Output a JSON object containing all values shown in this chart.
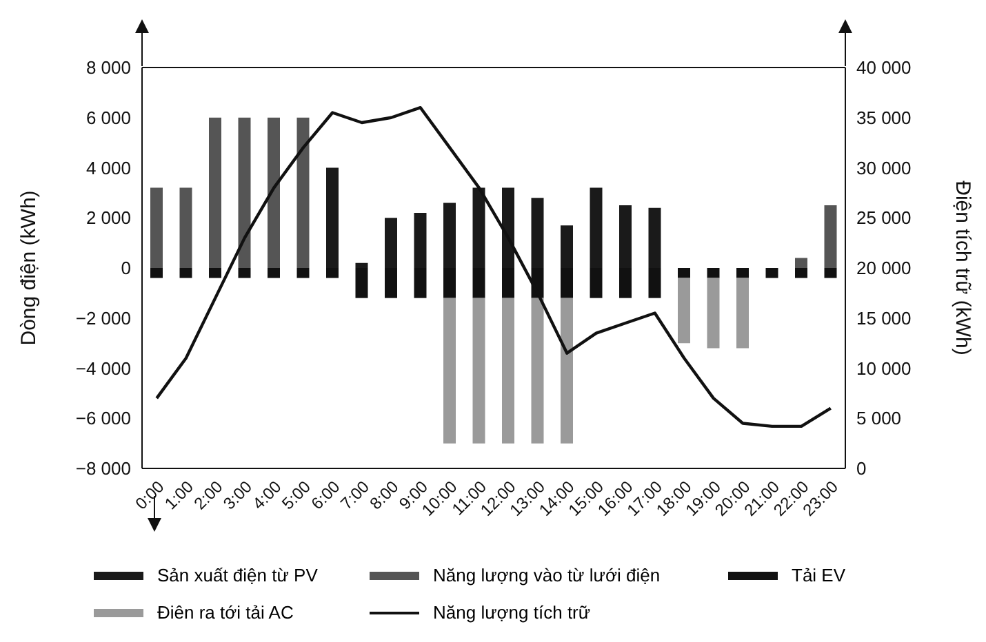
{
  "chart_data": {
    "type": "bar",
    "stacked": true,
    "xlabel": null,
    "ylabel": "Dòng điện (kWh)",
    "y2label": "Điện tích trữ  (kWh)",
    "categories": [
      "0:00",
      "1:00",
      "2:00",
      "3:00",
      "4:00",
      "5:00",
      "6:00",
      "7:00",
      "8:00",
      "9:00",
      "10:00",
      "11:00",
      "12:00",
      "13:00",
      "14:00",
      "15:00",
      "16:00",
      "17:00",
      "18:00",
      "19:00",
      "20:00",
      "21:00",
      "22:00",
      "23:00"
    ],
    "series": [
      {
        "name": "Sản xuất điện từ PV",
        "color": "#1a1a1a",
        "values": [
          null,
          null,
          null,
          null,
          null,
          null,
          4000,
          200,
          2000,
          2200,
          2600,
          3200,
          3200,
          2800,
          1700,
          3200,
          2500,
          2400,
          null,
          null,
          null,
          null,
          null,
          null
        ]
      },
      {
        "name": "Năng lượng vào từ lưới điện",
        "color": "#555555",
        "values": [
          3200,
          3200,
          6000,
          6000,
          6000,
          6000,
          null,
          null,
          null,
          null,
          null,
          null,
          null,
          null,
          null,
          null,
          null,
          null,
          null,
          null,
          null,
          null,
          400,
          2500
        ]
      },
      {
        "name": "Tải EV",
        "color": "#111111",
        "values": [
          -400,
          -400,
          -400,
          -400,
          -400,
          -400,
          -400,
          -1200,
          -1200,
          -1200,
          -1200,
          -1200,
          -1200,
          -1200,
          -1200,
          -1200,
          -1200,
          -1200,
          -400,
          -400,
          -400,
          -400,
          -400,
          -400
        ]
      },
      {
        "name": "Điên ra tới tải AC",
        "color": "#9a9a9a",
        "values": [
          null,
          null,
          null,
          null,
          null,
          null,
          null,
          null,
          null,
          null,
          -5800,
          -5800,
          -5800,
          -5800,
          -5800,
          null,
          null,
          null,
          -2600,
          -2800,
          -2800,
          null,
          null,
          null
        ]
      },
      {
        "name": "Năng lượng tích trữ",
        "type": "line",
        "axis": "y2",
        "color": "#111111",
        "values": [
          7000,
          11000,
          17000,
          23000,
          28000,
          32000,
          35500,
          34500,
          35000,
          36000,
          32000,
          28000,
          23000,
          17500,
          11500,
          13500,
          14500,
          15500,
          11000,
          7000,
          4500,
          4200,
          4200,
          6000
        ]
      }
    ],
    "ylim": [
      -8000,
      8000
    ],
    "yticks": [
      {
        "value": -8000,
        "label": "−8 000"
      },
      {
        "value": -6000,
        "label": "−6 000"
      },
      {
        "value": -4000,
        "label": "−4 000"
      },
      {
        "value": -2000,
        "label": "−2 000"
      },
      0,
      {
        "value": 2000,
        "label": "2 000"
      },
      {
        "value": 4000,
        "label": "4 000"
      },
      {
        "value": 6000,
        "label": "6 000"
      },
      {
        "value": 8000,
        "label": "8 000"
      }
    ],
    "y2lim": [
      0,
      40000
    ],
    "y2ticks": [
      0,
      {
        "value": 5000,
        "label": "5 000"
      },
      {
        "value": 10000,
        "label": "10 000"
      },
      {
        "value": 15000,
        "label": "15 000"
      },
      {
        "value": 20000,
        "label": "20 000"
      },
      {
        "value": 25000,
        "label": "25 000"
      },
      {
        "value": 30000,
        "label": "30 000"
      },
      {
        "value": 35000,
        "label": "35 000"
      },
      {
        "value": 40000,
        "label": "40 000"
      }
    ],
    "legend": "bottom",
    "marker": "none",
    "line_style": "solid"
  }
}
